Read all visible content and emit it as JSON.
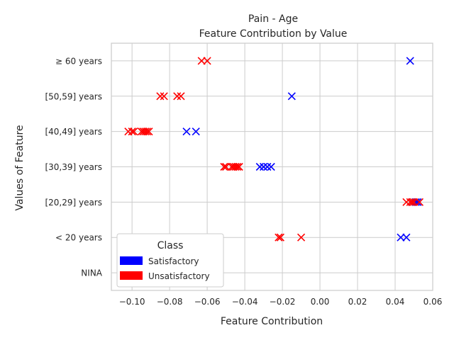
{
  "chart_data": {
    "type": "scatter",
    "title": "Pain - Age",
    "subtitle": "Feature Contribution by Value",
    "xlabel": "Feature Contribution",
    "ylabel": "Values of Feature",
    "xlim": [
      -0.111,
      0.06
    ],
    "x_ticks": [
      "−0.10",
      "−0.08",
      "−0.06",
      "−0.04",
      "−0.02",
      "0.00",
      "0.02",
      "0.04",
      "0.06"
    ],
    "x_tick_values": [
      -0.1,
      -0.08,
      -0.06,
      -0.04,
      -0.02,
      0.0,
      0.02,
      0.04,
      0.06
    ],
    "categories": [
      "NINA",
      "< 20 years",
      "[20,29] years",
      "[30,39] years",
      "[40,49] years",
      "[50,59] years",
      "≥ 60 years"
    ],
    "grid": true,
    "marker": "x",
    "legend": {
      "title": "Class",
      "placement": "lower-left",
      "entries": [
        {
          "label": "Satisfactory",
          "color": "#0000ff"
        },
        {
          "label": "Unsatisfactory",
          "color": "#ff0000"
        }
      ]
    },
    "series": [
      {
        "name": "Satisfactory",
        "color": "#0000ff",
        "points": [
          {
            "category": "≥ 60 years",
            "x": 0.048
          },
          {
            "category": "[50,59] years",
            "x": -0.015
          },
          {
            "category": "[40,49] years",
            "x": -0.071
          },
          {
            "category": "[40,49] years",
            "x": -0.066
          },
          {
            "category": "[30,39] years",
            "x": -0.032
          },
          {
            "category": "[30,39] years",
            "x": -0.03
          },
          {
            "category": "[30,39] years",
            "x": -0.028
          },
          {
            "category": "[30,39] years",
            "x": -0.026
          },
          {
            "category": "[20,29] years",
            "x": 0.049
          },
          {
            "category": "[20,29] years",
            "x": 0.051
          },
          {
            "category": "[20,29] years",
            "x": 0.052
          },
          {
            "category": "< 20 years",
            "x": 0.043
          },
          {
            "category": "< 20 years",
            "x": 0.046
          }
        ]
      },
      {
        "name": "Unsatisfactory",
        "color": "#ff0000",
        "points": [
          {
            "category": "≥ 60 years",
            "x": -0.063
          },
          {
            "category": "≥ 60 years",
            "x": -0.06
          },
          {
            "category": "[50,59] years",
            "x": -0.085
          },
          {
            "category": "[50,59] years",
            "x": -0.083
          },
          {
            "category": "[50,59] years",
            "x": -0.076
          },
          {
            "category": "[50,59] years",
            "x": -0.074
          },
          {
            "category": "[40,49] years",
            "x": -0.102
          },
          {
            "category": "[40,49] years",
            "x": -0.1
          },
          {
            "category": "[40,49] years",
            "x": -0.099
          },
          {
            "category": "[40,49] years",
            "x": -0.095
          },
          {
            "category": "[40,49] years",
            "x": -0.094
          },
          {
            "category": "[40,49] years",
            "x": -0.093
          },
          {
            "category": "[40,49] years",
            "x": -0.092
          },
          {
            "category": "[40,49] years",
            "x": -0.091
          },
          {
            "category": "[30,39] years",
            "x": -0.051
          },
          {
            "category": "[30,39] years",
            "x": -0.05
          },
          {
            "category": "[30,39] years",
            "x": -0.047
          },
          {
            "category": "[30,39] years",
            "x": -0.046
          },
          {
            "category": "[30,39] years",
            "x": -0.045
          },
          {
            "category": "[30,39] years",
            "x": -0.044
          },
          {
            "category": "[30,39] years",
            "x": -0.043
          },
          {
            "category": "[20,29] years",
            "x": 0.046
          },
          {
            "category": "[20,29] years",
            "x": 0.048
          },
          {
            "category": "[20,29] years",
            "x": 0.049
          },
          {
            "category": "[20,29] years",
            "x": 0.05
          },
          {
            "category": "[20,29] years",
            "x": 0.053
          },
          {
            "category": "< 20 years",
            "x": -0.022
          },
          {
            "category": "< 20 years",
            "x": -0.021
          },
          {
            "category": "< 20 years",
            "x": -0.01
          }
        ]
      }
    ]
  }
}
